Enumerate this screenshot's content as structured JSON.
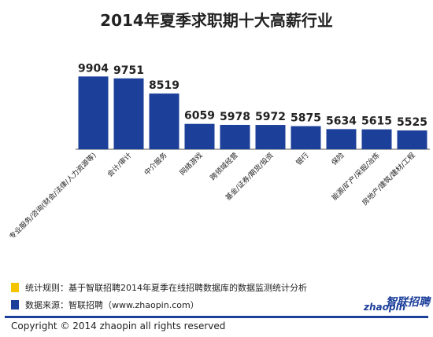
{
  "title": "2014年夏季求职期十大高薪行业",
  "chart_data": {
    "type": "bar",
    "categories": [
      "专业服务/咨询(财会/法律/人力资源等)",
      "会计/审计",
      "中介服务",
      "网络游戏",
      "跨领域经营",
      "基金/证券/期货/投资",
      "银行",
      "保险",
      "能源/矿产/采掘/冶炼",
      "房地产/建筑/建材/工程"
    ],
    "values": [
      9904,
      9751,
      8519,
      6059,
      5978,
      5972,
      5875,
      5634,
      5615,
      5525
    ],
    "ylim": [
      4000,
      10500
    ],
    "bar_color": "#1c3f9a"
  },
  "notes": [
    {
      "text": "统计规则：基于智联招聘2014年夏季在线招聘数据库的数据监测统计分析",
      "color": "#f5c400"
    },
    {
      "text": "数据来源：智联招聘（www.zhaopin.com）",
      "color": "#1c3f9a"
    }
  ],
  "copyright": "Copyright  ©  2014 zhaopin all rights reserved",
  "logo": {
    "cn": "智联招聘",
    "en": "zhaopin"
  }
}
